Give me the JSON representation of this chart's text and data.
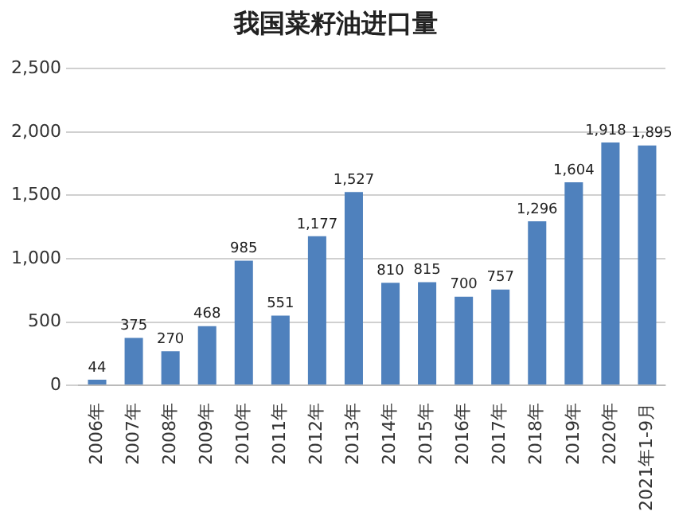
{
  "chart_data": {
    "type": "bar",
    "title": "我国菜籽油进口量",
    "categories": [
      "2006年",
      "2007年",
      "2008年",
      "2009年",
      "2010年",
      "2011年",
      "2012年",
      "2013年",
      "2014年",
      "2015年",
      "2016年",
      "2017年",
      "2018年",
      "2019年",
      "2020年",
      "2021年1-9月"
    ],
    "values": [
      44,
      375,
      270,
      468,
      985,
      551,
      1177,
      1527,
      810,
      815,
      700,
      757,
      1296,
      1604,
      1918,
      1895
    ],
    "value_labels": [
      "44",
      "375",
      "270",
      "468",
      "985",
      "551",
      "1,177",
      "1,527",
      "810",
      "815",
      "700",
      "757",
      "1,296",
      "1,604",
      "1,918",
      "1,895"
    ],
    "color": "#4f81bd",
    "ylim": [
      0,
      2500
    ],
    "yticks": [
      0,
      {
        "value": 500,
        "label": "500"
      },
      {
        "value": 1000,
        "label": "1,000"
      },
      {
        "value": 1500,
        "label": "1,500"
      },
      {
        "value": 2000,
        "label": "2,000"
      },
      {
        "value": 2500,
        "label": "2,500"
      }
    ],
    "grid": "y"
  }
}
